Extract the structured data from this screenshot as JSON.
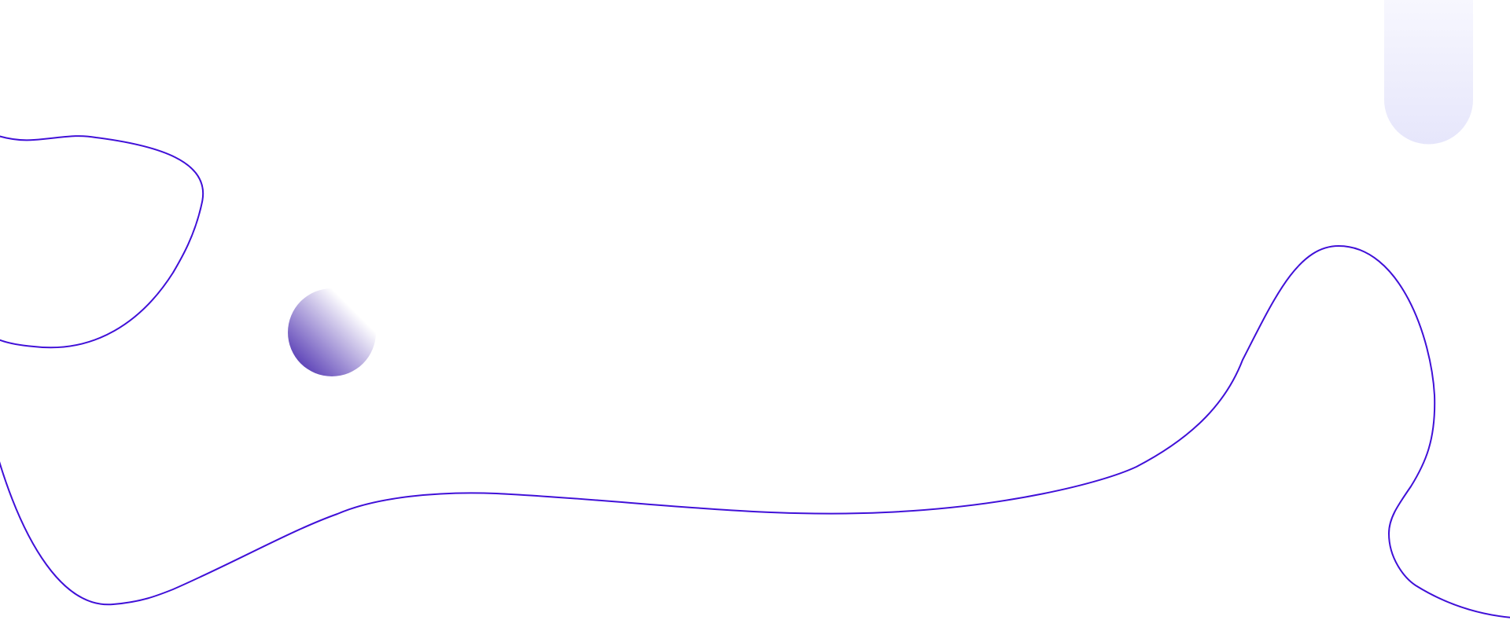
{
  "colors": {
    "background": "#ffffff",
    "line_stroke": "#4010d8",
    "circle_gradient_dark": "#3a1aa8",
    "circle_gradient_light": "#ffffff",
    "pill_gradient_top": "#f7f7fe",
    "pill_gradient_bottom": "#e6e6fb"
  },
  "shapes": [
    "wavy-line-top-left",
    "wavy-line-bottom",
    "gradient-circle",
    "gradient-pill"
  ]
}
